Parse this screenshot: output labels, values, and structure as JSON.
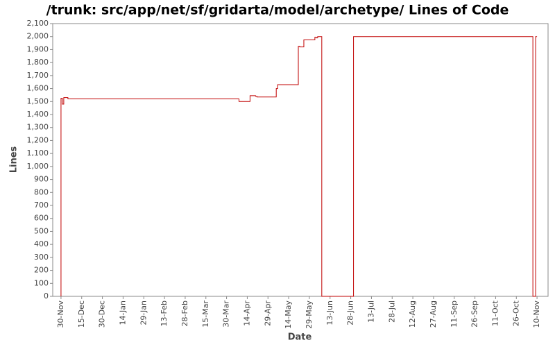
{
  "chart_data": {
    "type": "line",
    "step": true,
    "title": "/trunk: src/app/net/sf/gridarta/model/archetype/ Lines of Code",
    "x_label": "Date",
    "y_label": "Lines",
    "x": [
      "30-Nov",
      "30-Nov",
      "1-Dec",
      "2-Dec",
      "5-Dec",
      "8-Apr",
      "16-Apr",
      "20-Apr",
      "21-Apr",
      "5-May",
      "6-May",
      "21-May",
      "22-May",
      "25-May",
      "2-Jun",
      "3-Jun",
      "4-Jun",
      "7-Jun",
      "30-Jun",
      "7-Nov",
      "9-Nov",
      "10-Nov"
    ],
    "series": [
      {
        "name": "Lines",
        "color": "#c00000",
        "values": [
          0,
          1525,
          1480,
          1530,
          1520,
          1500,
          1545,
          1540,
          1535,
          1600,
          1630,
          1925,
          1920,
          1975,
          1995,
          1990,
          2000,
          0,
          2000,
          0,
          2000,
          2000
        ]
      }
    ],
    "xlim": [
      "24-Nov",
      "18-Nov"
    ],
    "xticks": [
      "30-Nov",
      "15-Dec",
      "30-Dec",
      "14-Jan",
      "29-Jan",
      "13-Feb",
      "28-Feb",
      "15-Mar",
      "30-Mar",
      "14-Apr",
      "29-Apr",
      "14-May",
      "29-May",
      "13-Jun",
      "28-Jun",
      "13-Jul",
      "28-Jul",
      "12-Aug",
      "27-Aug",
      "11-Sep",
      "26-Sep",
      "11-Oct",
      "26-Oct",
      "10-Nov"
    ],
    "ylim": [
      0,
      2100
    ],
    "yticks": [
      0,
      100,
      200,
      300,
      400,
      500,
      600,
      700,
      800,
      900,
      {
        "value": 1000,
        "label": "1,000"
      },
      {
        "value": 1100,
        "label": "1,100"
      },
      {
        "value": 1200,
        "label": "1,200"
      },
      {
        "value": 1300,
        "label": "1,300"
      },
      {
        "value": 1400,
        "label": "1,400"
      },
      {
        "value": 1500,
        "label": "1,500"
      },
      {
        "value": 1600,
        "label": "1,600"
      },
      {
        "value": 1700,
        "label": "1,700"
      },
      {
        "value": 1800,
        "label": "1,800"
      },
      {
        "value": 1900,
        "label": "1,900"
      },
      {
        "value": 2000,
        "label": "2,000"
      },
      {
        "value": 2100,
        "label": "2,100"
      }
    ],
    "grid": false
  }
}
